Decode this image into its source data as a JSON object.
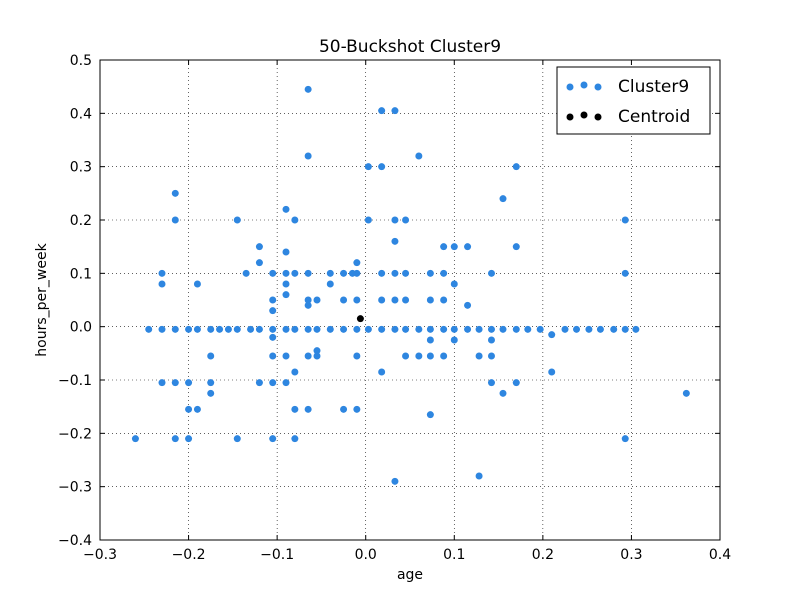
{
  "chart_data": {
    "type": "scatter",
    "title": "50-Buckshot Cluster9",
    "xlabel": "age",
    "ylabel": "hours_per_week",
    "xlim": [
      -0.3,
      0.4
    ],
    "ylim": [
      -0.4,
      0.5
    ],
    "xticks": [
      -0.3,
      -0.2,
      -0.1,
      0.0,
      0.1,
      0.2,
      0.3,
      0.4
    ],
    "yticks": [
      -0.4,
      -0.3,
      -0.2,
      -0.1,
      0.0,
      0.1,
      0.2,
      0.3,
      0.4,
      0.5
    ],
    "xtick_labels": [
      "−0.3",
      "−0.2",
      "−0.1",
      "0.0",
      "0.1",
      "0.2",
      "0.3",
      "0.4"
    ],
    "ytick_labels": [
      "−0.4",
      "−0.3",
      "−0.2",
      "−0.1",
      "0.0",
      "0.1",
      "0.2",
      "0.3",
      "0.4",
      "0.5"
    ],
    "grid": true,
    "legend_position": "top-right",
    "series": [
      {
        "name": "Cluster9",
        "color": "#2e86e0",
        "points": [
          [
            -0.26,
            -0.21
          ],
          [
            -0.245,
            -0.005
          ],
          [
            -0.23,
            -0.005
          ],
          [
            -0.23,
            0.1
          ],
          [
            -0.23,
            0.08
          ],
          [
            -0.23,
            -0.105
          ],
          [
            -0.215,
            0.25
          ],
          [
            -0.215,
            0.2
          ],
          [
            -0.215,
            -0.105
          ],
          [
            -0.215,
            -0.21
          ],
          [
            -0.215,
            -0.005
          ],
          [
            -0.2,
            -0.105
          ],
          [
            -0.2,
            -0.155
          ],
          [
            -0.2,
            -0.21
          ],
          [
            -0.2,
            -0.005
          ],
          [
            -0.19,
            0.08
          ],
          [
            -0.19,
            -0.155
          ],
          [
            -0.19,
            -0.005
          ],
          [
            -0.175,
            -0.055
          ],
          [
            -0.175,
            -0.105
          ],
          [
            -0.175,
            -0.125
          ],
          [
            -0.175,
            -0.005
          ],
          [
            -0.165,
            -0.005
          ],
          [
            -0.155,
            -0.005
          ],
          [
            -0.145,
            0.2
          ],
          [
            -0.145,
            -0.21
          ],
          [
            -0.145,
            -0.005
          ],
          [
            -0.135,
            0.1
          ],
          [
            -0.13,
            -0.005
          ],
          [
            -0.12,
            0.15
          ],
          [
            -0.12,
            0.12
          ],
          [
            -0.12,
            -0.105
          ],
          [
            -0.12,
            -0.005
          ],
          [
            -0.105,
            0.1
          ],
          [
            -0.105,
            0.05
          ],
          [
            -0.105,
            0.03
          ],
          [
            -0.105,
            -0.02
          ],
          [
            -0.105,
            -0.055
          ],
          [
            -0.105,
            -0.105
          ],
          [
            -0.105,
            -0.21
          ],
          [
            -0.105,
            -0.005
          ],
          [
            -0.09,
            0.22
          ],
          [
            -0.09,
            0.14
          ],
          [
            -0.09,
            0.1
          ],
          [
            -0.09,
            0.08
          ],
          [
            -0.09,
            0.06
          ],
          [
            -0.09,
            -0.005
          ],
          [
            -0.09,
            -0.055
          ],
          [
            -0.09,
            -0.105
          ],
          [
            -0.08,
            0.2
          ],
          [
            -0.08,
            0.1
          ],
          [
            -0.08,
            -0.085
          ],
          [
            -0.08,
            -0.155
          ],
          [
            -0.08,
            -0.21
          ],
          [
            -0.08,
            -0.005
          ],
          [
            -0.065,
            0.445
          ],
          [
            -0.065,
            0.32
          ],
          [
            -0.065,
            0.1
          ],
          [
            -0.065,
            0.05
          ],
          [
            -0.065,
            0.04
          ],
          [
            -0.065,
            -0.055
          ],
          [
            -0.065,
            -0.155
          ],
          [
            -0.065,
            -0.005
          ],
          [
            -0.055,
            0.05
          ],
          [
            -0.055,
            -0.045
          ],
          [
            -0.055,
            -0.055
          ],
          [
            -0.055,
            -0.005
          ],
          [
            -0.04,
            0.1
          ],
          [
            -0.04,
            0.08
          ],
          [
            -0.04,
            -0.005
          ],
          [
            -0.025,
            0.1
          ],
          [
            -0.025,
            0.05
          ],
          [
            -0.025,
            -0.155
          ],
          [
            -0.025,
            -0.005
          ],
          [
            -0.015,
            0.1
          ],
          [
            -0.01,
            0.12
          ],
          [
            -0.01,
            0.1
          ],
          [
            -0.01,
            0.05
          ],
          [
            -0.01,
            -0.055
          ],
          [
            -0.01,
            -0.155
          ],
          [
            -0.01,
            -0.005
          ],
          [
            0.003,
            0.3
          ],
          [
            0.003,
            0.2
          ],
          [
            0.003,
            -0.005
          ],
          [
            0.018,
            0.405
          ],
          [
            0.018,
            0.3
          ],
          [
            0.018,
            0.1
          ],
          [
            0.018,
            0.05
          ],
          [
            0.018,
            -0.085
          ],
          [
            0.018,
            -0.005
          ],
          [
            0.033,
            0.405
          ],
          [
            0.033,
            0.2
          ],
          [
            0.033,
            0.16
          ],
          [
            0.033,
            0.1
          ],
          [
            0.033,
            0.05
          ],
          [
            0.033,
            -0.29
          ],
          [
            0.033,
            -0.005
          ],
          [
            0.045,
            0.2
          ],
          [
            0.045,
            0.1
          ],
          [
            0.045,
            0.05
          ],
          [
            0.045,
            -0.055
          ],
          [
            0.045,
            -0.005
          ],
          [
            0.06,
            0.32
          ],
          [
            0.06,
            -0.055
          ],
          [
            0.06,
            -0.005
          ],
          [
            0.073,
            0.1
          ],
          [
            0.073,
            0.05
          ],
          [
            0.073,
            -0.025
          ],
          [
            0.073,
            -0.055
          ],
          [
            0.073,
            -0.165
          ],
          [
            0.073,
            -0.005
          ],
          [
            0.088,
            0.15
          ],
          [
            0.088,
            0.1
          ],
          [
            0.088,
            0.05
          ],
          [
            0.088,
            -0.055
          ],
          [
            0.088,
            -0.005
          ],
          [
            0.1,
            0.15
          ],
          [
            0.1,
            0.08
          ],
          [
            0.1,
            -0.025
          ],
          [
            0.1,
            -0.005
          ],
          [
            0.115,
            0.15
          ],
          [
            0.115,
            0.04
          ],
          [
            0.115,
            -0.005
          ],
          [
            0.128,
            -0.055
          ],
          [
            0.128,
            -0.28
          ],
          [
            0.128,
            -0.005
          ],
          [
            0.142,
            0.1
          ],
          [
            0.142,
            -0.025
          ],
          [
            0.142,
            -0.055
          ],
          [
            0.142,
            -0.105
          ],
          [
            0.142,
            -0.005
          ],
          [
            0.155,
            0.24
          ],
          [
            0.155,
            -0.125
          ],
          [
            0.155,
            -0.005
          ],
          [
            0.17,
            0.3
          ],
          [
            0.17,
            0.15
          ],
          [
            0.17,
            -0.105
          ],
          [
            0.17,
            -0.005
          ],
          [
            0.183,
            -0.005
          ],
          [
            0.197,
            -0.005
          ],
          [
            0.21,
            -0.015
          ],
          [
            0.21,
            -0.085
          ],
          [
            0.225,
            -0.005
          ],
          [
            0.238,
            -0.005
          ],
          [
            0.252,
            -0.005
          ],
          [
            0.265,
            -0.005
          ],
          [
            0.28,
            -0.005
          ],
          [
            0.293,
            0.2
          ],
          [
            0.293,
            0.1
          ],
          [
            0.293,
            -0.21
          ],
          [
            0.293,
            -0.005
          ],
          [
            0.305,
            -0.005
          ],
          [
            0.362,
            -0.125
          ]
        ]
      },
      {
        "name": "Centroid",
        "color": "#000000",
        "points": [
          [
            -0.006,
            0.015
          ]
        ]
      }
    ]
  }
}
